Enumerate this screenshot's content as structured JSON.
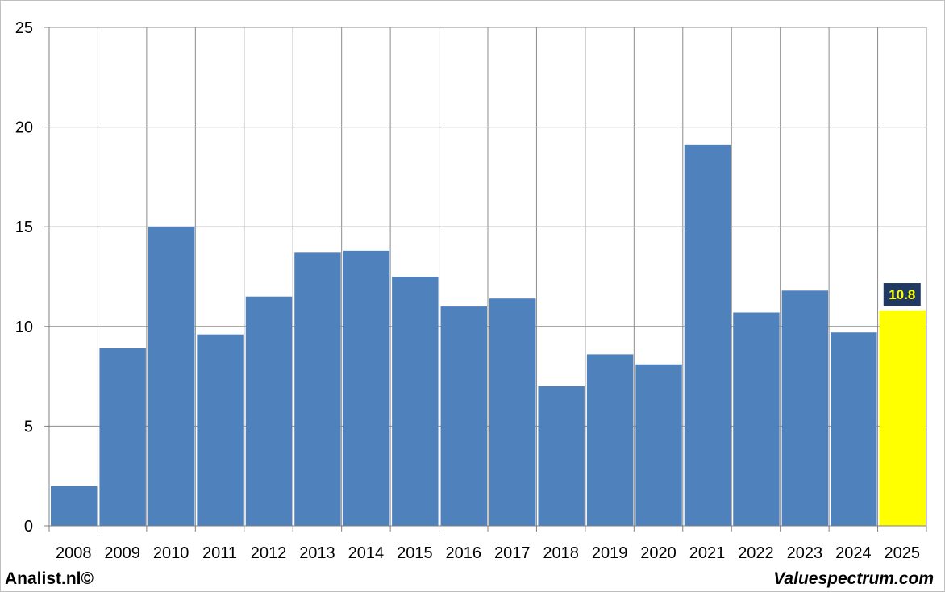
{
  "chart_data": {
    "type": "bar",
    "categories": [
      "2008",
      "2009",
      "2010",
      "2011",
      "2012",
      "2013",
      "2014",
      "2015",
      "2016",
      "2017",
      "2018",
      "2019",
      "2020",
      "2021",
      "2022",
      "2023",
      "2024",
      "2025"
    ],
    "values": [
      2.0,
      8.9,
      15.0,
      9.6,
      11.5,
      13.7,
      13.8,
      12.5,
      11.0,
      11.4,
      7.0,
      8.6,
      8.1,
      19.1,
      10.7,
      11.8,
      9.7,
      10.8
    ],
    "highlight": {
      "index": 17,
      "label": "10.8",
      "color": "#ffff00",
      "label_bg": "#1f3864",
      "label_color": "#ffff00"
    },
    "bar_color": "#4f81bd",
    "ylim": [
      0,
      25
    ],
    "yticks": [
      "0",
      "5",
      "10",
      "15",
      "20",
      "25"
    ],
    "grid": true,
    "title": "",
    "xlabel": "",
    "ylabel": ""
  },
  "footer": {
    "left": "Analist.nl©",
    "right": "Valuespectrum.com"
  }
}
